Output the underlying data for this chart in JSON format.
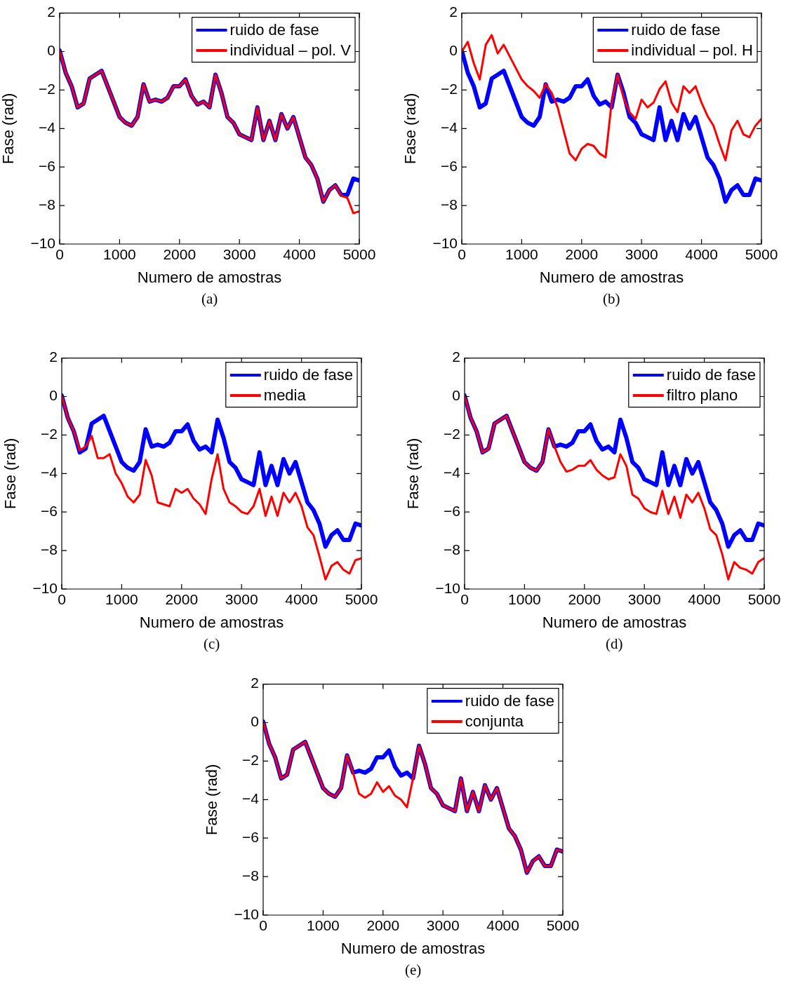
{
  "chart_data": [
    {
      "type": "line",
      "xlabel": "Numero de amostras",
      "ylabel": "Fase (rad)",
      "annotations": [
        "(a)"
      ],
      "legend": "top right",
      "line_style": "solid",
      "xlim": [
        0,
        5000
      ],
      "ylim": [
        -10,
        2
      ],
      "xticks": [
        0,
        1000,
        2000,
        3000,
        4000,
        5000
      ],
      "yticks": [
        -10,
        -8,
        -6,
        -4,
        -2,
        0,
        2
      ],
      "x": [
        0,
        100,
        200,
        300,
        400,
        500,
        600,
        700,
        800,
        900,
        1000,
        1100,
        1200,
        1300,
        1400,
        1500,
        1600,
        1700,
        1800,
        1900,
        2000,
        2100,
        2200,
        2300,
        2400,
        2500,
        2600,
        2700,
        2800,
        2900,
        3000,
        3100,
        3200,
        3300,
        3400,
        3500,
        3600,
        3700,
        3800,
        3900,
        4000,
        4100,
        4200,
        4300,
        4400,
        4500,
        4600,
        4700,
        4800,
        4900,
        5000
      ],
      "series": [
        {
          "name": "ruido de fase",
          "color": "#0000ff",
          "values": [
            0.05,
            -1.1,
            -1.8,
            -2.9,
            -2.7,
            -1.4,
            -1.2,
            -1.0,
            -1.8,
            -2.6,
            -3.4,
            -3.7,
            -3.85,
            -3.4,
            -1.7,
            -2.6,
            -2.5,
            -2.6,
            -2.4,
            -1.8,
            -1.8,
            -1.45,
            -2.3,
            -2.75,
            -2.6,
            -2.9,
            -1.2,
            -2.15,
            -3.4,
            -3.7,
            -4.3,
            -4.45,
            -4.6,
            -2.9,
            -4.6,
            -3.6,
            -4.6,
            -3.25,
            -4.0,
            -3.4,
            -4.45,
            -5.5,
            -5.9,
            -6.6,
            -7.8,
            -7.2,
            -6.95,
            -7.45,
            -7.45,
            -6.6,
            -6.7
          ]
        },
        {
          "name": "individual – pol. V",
          "color": "#ff0000",
          "values": [
            0.05,
            -1.1,
            -1.8,
            -2.9,
            -2.7,
            -1.4,
            -1.2,
            -1.0,
            -1.8,
            -2.6,
            -3.4,
            -3.7,
            -3.85,
            -3.4,
            -1.7,
            -2.6,
            -2.5,
            -2.6,
            -2.4,
            -1.8,
            -1.8,
            -1.45,
            -2.3,
            -2.75,
            -2.6,
            -2.9,
            -1.2,
            -2.15,
            -3.4,
            -3.7,
            -4.3,
            -4.45,
            -4.6,
            -2.9,
            -4.6,
            -3.6,
            -4.6,
            -3.25,
            -4.0,
            -3.4,
            -4.45,
            -5.5,
            -5.9,
            -6.6,
            -7.8,
            -7.2,
            -6.95,
            -7.5,
            -7.6,
            -8.4,
            -8.3
          ]
        }
      ]
    },
    {
      "type": "line",
      "xlabel": "Numero de amostras",
      "ylabel": "Fase (rad)",
      "annotations": [
        "(b)"
      ],
      "legend": "top right",
      "line_style": "solid",
      "xlim": [
        0,
        5000
      ],
      "ylim": [
        -10,
        2
      ],
      "xticks": [
        0,
        1000,
        2000,
        3000,
        4000,
        5000
      ],
      "yticks": [
        -10,
        -8,
        -6,
        -4,
        -2,
        0,
        2
      ],
      "x": [
        0,
        100,
        200,
        300,
        400,
        500,
        600,
        700,
        800,
        900,
        1000,
        1100,
        1200,
        1300,
        1400,
        1500,
        1600,
        1700,
        1800,
        1900,
        2000,
        2100,
        2200,
        2300,
        2400,
        2500,
        2600,
        2700,
        2800,
        2900,
        3000,
        3100,
        3200,
        3300,
        3400,
        3500,
        3600,
        3700,
        3800,
        3900,
        4000,
        4100,
        4200,
        4300,
        4400,
        4500,
        4600,
        4700,
        4800,
        4900,
        5000
      ],
      "series": [
        {
          "name": "ruido de fase",
          "color": "#0000ff",
          "values": [
            0.05,
            -1.1,
            -1.8,
            -2.9,
            -2.7,
            -1.4,
            -1.2,
            -1.0,
            -1.8,
            -2.6,
            -3.4,
            -3.7,
            -3.85,
            -3.4,
            -1.7,
            -2.6,
            -2.5,
            -2.6,
            -2.4,
            -1.8,
            -1.8,
            -1.45,
            -2.3,
            -2.75,
            -2.6,
            -2.9,
            -1.2,
            -2.15,
            -3.4,
            -3.7,
            -4.3,
            -4.45,
            -4.6,
            -2.9,
            -4.6,
            -3.6,
            -4.6,
            -3.25,
            -4.0,
            -3.4,
            -4.45,
            -5.5,
            -5.9,
            -6.6,
            -7.8,
            -7.2,
            -6.95,
            -7.45,
            -7.45,
            -6.6,
            -6.7
          ]
        },
        {
          "name": "individual – pol. H",
          "color": "#ff0000",
          "values": [
            0.0,
            0.5,
            -0.6,
            -1.45,
            0.35,
            0.85,
            -0.1,
            0.35,
            -0.25,
            -0.85,
            -1.45,
            -1.8,
            -2.05,
            -2.4,
            -1.7,
            -2.15,
            -2.9,
            -4.1,
            -5.3,
            -5.65,
            -5.05,
            -4.8,
            -4.9,
            -5.3,
            -5.5,
            -2.65,
            -1.2,
            -2.4,
            -3.15,
            -3.5,
            -2.5,
            -2.9,
            -2.65,
            -1.95,
            -1.55,
            -2.65,
            -3.15,
            -1.8,
            -2.15,
            -1.8,
            -2.65,
            -3.35,
            -3.85,
            -4.8,
            -5.65,
            -4.1,
            -3.6,
            -4.3,
            -4.45,
            -3.85,
            -3.5
          ]
        }
      ]
    },
    {
      "type": "line",
      "xlabel": "Numero de amostras",
      "ylabel": "Fase (rad)",
      "annotations": [
        "(c)"
      ],
      "legend": "top right",
      "line_style": "solid",
      "xlim": [
        0,
        5000
      ],
      "ylim": [
        -10,
        2
      ],
      "xticks": [
        0,
        1000,
        2000,
        3000,
        4000,
        5000
      ],
      "yticks": [
        -10,
        -8,
        -6,
        -4,
        -2,
        0,
        2
      ],
      "x": [
        0,
        100,
        200,
        300,
        400,
        500,
        600,
        700,
        800,
        900,
        1000,
        1100,
        1200,
        1300,
        1400,
        1500,
        1600,
        1700,
        1800,
        1900,
        2000,
        2100,
        2200,
        2300,
        2400,
        2500,
        2600,
        2700,
        2800,
        2900,
        3000,
        3100,
        3200,
        3300,
        3400,
        3500,
        3600,
        3700,
        3800,
        3900,
        4000,
        4100,
        4200,
        4300,
        4400,
        4500,
        4600,
        4700,
        4800,
        4900,
        5000
      ],
      "series": [
        {
          "name": "ruido de fase",
          "color": "#0000ff",
          "values": [
            0.05,
            -1.1,
            -1.8,
            -2.9,
            -2.7,
            -1.4,
            -1.2,
            -1.0,
            -1.8,
            -2.6,
            -3.4,
            -3.7,
            -3.85,
            -3.4,
            -1.7,
            -2.6,
            -2.5,
            -2.6,
            -2.4,
            -1.8,
            -1.8,
            -1.45,
            -2.3,
            -2.75,
            -2.6,
            -2.9,
            -1.2,
            -2.15,
            -3.4,
            -3.7,
            -4.3,
            -4.45,
            -4.6,
            -2.9,
            -4.6,
            -3.6,
            -4.6,
            -3.25,
            -4.0,
            -3.4,
            -4.45,
            -5.5,
            -5.9,
            -6.6,
            -7.8,
            -7.2,
            -6.95,
            -7.45,
            -7.45,
            -6.6,
            -6.7
          ]
        },
        {
          "name": "media",
          "color": "#ff0000",
          "values": [
            0.05,
            -1.1,
            -1.8,
            -2.8,
            -2.6,
            -2.05,
            -3.2,
            -3.2,
            -3.0,
            -4.0,
            -4.5,
            -5.2,
            -5.5,
            -5.1,
            -3.3,
            -4.1,
            -5.5,
            -5.6,
            -5.7,
            -4.8,
            -5.0,
            -4.8,
            -5.3,
            -5.6,
            -6.1,
            -4.3,
            -3.0,
            -4.8,
            -5.5,
            -5.7,
            -6.0,
            -6.1,
            -5.7,
            -4.8,
            -6.2,
            -5.2,
            -6.2,
            -5.0,
            -5.5,
            -5.0,
            -5.7,
            -6.8,
            -7.2,
            -8.3,
            -9.5,
            -8.8,
            -8.6,
            -9.0,
            -9.2,
            -8.5,
            -8.4
          ]
        }
      ]
    },
    {
      "type": "line",
      "xlabel": "Numero de amostras",
      "ylabel": "Fase (rad)",
      "annotations": [
        "(d)"
      ],
      "legend": "top right",
      "line_style": "solid",
      "xlim": [
        0,
        5000
      ],
      "ylim": [
        -10,
        2
      ],
      "xticks": [
        0,
        1000,
        2000,
        3000,
        4000,
        5000
      ],
      "yticks": [
        -10,
        -8,
        -6,
        -4,
        -2,
        0,
        2
      ],
      "x": [
        0,
        100,
        200,
        300,
        400,
        500,
        600,
        700,
        800,
        900,
        1000,
        1100,
        1200,
        1300,
        1400,
        1500,
        1600,
        1700,
        1800,
        1900,
        2000,
        2100,
        2200,
        2300,
        2400,
        2500,
        2600,
        2700,
        2800,
        2900,
        3000,
        3100,
        3200,
        3300,
        3400,
        3500,
        3600,
        3700,
        3800,
        3900,
        4000,
        4100,
        4200,
        4300,
        4400,
        4500,
        4600,
        4700,
        4800,
        4900,
        5000
      ],
      "series": [
        {
          "name": "ruido de fase",
          "color": "#0000ff",
          "values": [
            0.05,
            -1.1,
            -1.8,
            -2.9,
            -2.7,
            -1.4,
            -1.2,
            -1.0,
            -1.8,
            -2.6,
            -3.4,
            -3.7,
            -3.85,
            -3.4,
            -1.7,
            -2.6,
            -2.5,
            -2.6,
            -2.4,
            -1.8,
            -1.8,
            -1.45,
            -2.3,
            -2.75,
            -2.6,
            -2.9,
            -1.2,
            -2.15,
            -3.4,
            -3.7,
            -4.3,
            -4.45,
            -4.6,
            -2.9,
            -4.6,
            -3.6,
            -4.6,
            -3.25,
            -4.0,
            -3.4,
            -4.45,
            -5.5,
            -5.9,
            -6.6,
            -7.8,
            -7.2,
            -6.95,
            -7.45,
            -7.45,
            -6.6,
            -6.7
          ]
        },
        {
          "name": "filtro plano",
          "color": "#ff0000",
          "values": [
            0.05,
            -1.1,
            -1.8,
            -2.9,
            -2.7,
            -1.4,
            -1.2,
            -1.0,
            -1.8,
            -2.6,
            -3.4,
            -3.7,
            -3.85,
            -3.4,
            -1.7,
            -2.6,
            -3.4,
            -3.9,
            -3.8,
            -3.6,
            -3.6,
            -3.3,
            -3.8,
            -4.1,
            -4.3,
            -4.2,
            -3.0,
            -3.6,
            -5.1,
            -5.3,
            -5.8,
            -6.0,
            -6.1,
            -4.9,
            -6.1,
            -5.2,
            -6.3,
            -5.1,
            -5.5,
            -5.0,
            -5.8,
            -6.9,
            -7.2,
            -8.2,
            -9.5,
            -8.6,
            -8.9,
            -9.0,
            -9.2,
            -8.6,
            -8.4
          ]
        }
      ]
    },
    {
      "type": "line",
      "xlabel": "Numero de amostras",
      "ylabel": "Fase (rad)",
      "annotations": [
        "(e)"
      ],
      "legend": "top right",
      "line_style": "solid",
      "xlim": [
        0,
        5000
      ],
      "ylim": [
        -10,
        2
      ],
      "xticks": [
        0,
        1000,
        2000,
        3000,
        4000,
        5000
      ],
      "yticks": [
        -10,
        -8,
        -6,
        -4,
        -2,
        0,
        2
      ],
      "x": [
        0,
        100,
        200,
        300,
        400,
        500,
        600,
        700,
        800,
        900,
        1000,
        1100,
        1200,
        1300,
        1400,
        1500,
        1600,
        1700,
        1800,
        1900,
        2000,
        2100,
        2200,
        2300,
        2400,
        2500,
        2600,
        2700,
        2800,
        2900,
        3000,
        3100,
        3200,
        3300,
        3400,
        3500,
        3600,
        3700,
        3800,
        3900,
        4000,
        4100,
        4200,
        4300,
        4400,
        4500,
        4600,
        4700,
        4800,
        4900,
        5000
      ],
      "series": [
        {
          "name": "ruido de fase",
          "color": "#0000ff",
          "values": [
            0.05,
            -1.1,
            -1.8,
            -2.9,
            -2.7,
            -1.4,
            -1.2,
            -1.0,
            -1.8,
            -2.6,
            -3.4,
            -3.7,
            -3.85,
            -3.4,
            -1.7,
            -2.6,
            -2.5,
            -2.6,
            -2.4,
            -1.8,
            -1.8,
            -1.45,
            -2.3,
            -2.75,
            -2.6,
            -2.9,
            -1.2,
            -2.15,
            -3.4,
            -3.7,
            -4.3,
            -4.45,
            -4.6,
            -2.9,
            -4.6,
            -3.6,
            -4.6,
            -3.25,
            -4.0,
            -3.4,
            -4.45,
            -5.5,
            -5.9,
            -6.6,
            -7.8,
            -7.2,
            -6.95,
            -7.45,
            -7.45,
            -6.6,
            -6.7
          ]
        },
        {
          "name": "conjunta",
          "color": "#ff0000",
          "values": [
            0.05,
            -1.1,
            -1.8,
            -2.9,
            -2.7,
            -1.4,
            -1.2,
            -1.0,
            -1.8,
            -2.6,
            -3.4,
            -3.7,
            -3.85,
            -3.4,
            -1.7,
            -2.6,
            -3.7,
            -3.9,
            -3.7,
            -3.1,
            -3.6,
            -3.3,
            -3.8,
            -4.0,
            -4.4,
            -2.9,
            -1.2,
            -2.15,
            -3.4,
            -3.7,
            -4.3,
            -4.45,
            -4.6,
            -2.9,
            -4.6,
            -3.6,
            -4.6,
            -3.25,
            -4.0,
            -3.4,
            -4.45,
            -5.5,
            -5.9,
            -6.6,
            -7.8,
            -7.2,
            -6.95,
            -7.45,
            -7.45,
            -6.6,
            -6.7
          ]
        }
      ]
    }
  ]
}
